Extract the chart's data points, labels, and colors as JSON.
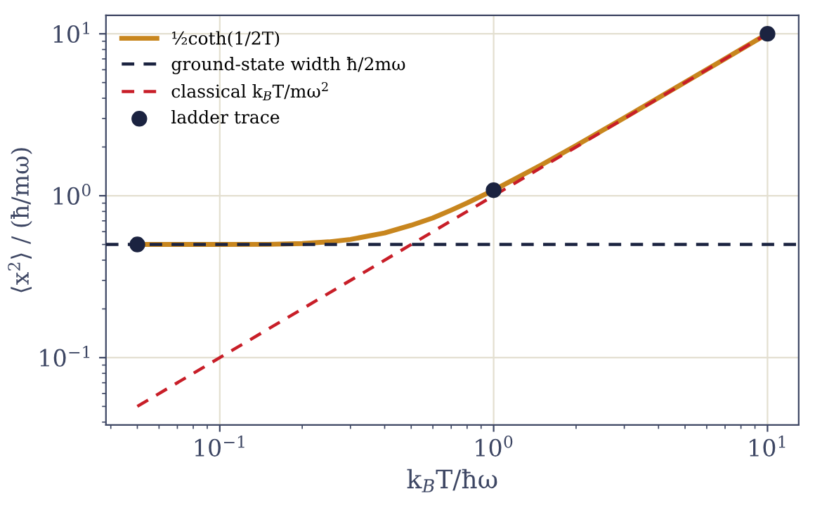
{
  "chart_data": {
    "type": "line",
    "xlabel": "k$_{B}$T/ħω",
    "ylabel": "⟨x$^{2}$⟩ / (ħ/mω)",
    "log": "xy",
    "grid": true,
    "legend": "top left",
    "xlim": [
      0.0384,
      13.0
    ],
    "ylim": [
      0.0384,
      13.0
    ],
    "xticks": [
      {
        "value": 0.1,
        "label": "10$^{−1}$"
      },
      {
        "value": 1,
        "label": "10$^{0}$"
      },
      {
        "value": 10,
        "label": "10$^{1}$"
      }
    ],
    "yticks": [
      {
        "value": 0.1,
        "label": "10$^{−1}$"
      },
      {
        "value": 1,
        "label": "10$^{0}$"
      },
      {
        "value": 10,
        "label": "10$^{1}$"
      }
    ],
    "series": [
      {
        "name": "½coth(1/2T)",
        "color": "#c8861e",
        "line_style": "solid",
        "x": [
          0.05,
          0.1,
          0.15,
          0.2,
          0.25,
          0.3,
          0.4,
          0.5,
          0.6,
          0.7,
          0.8,
          1,
          1.5,
          2,
          3,
          5,
          7,
          10
        ],
        "values": [
          0.5,
          0.5,
          0.501,
          0.507,
          0.519,
          0.537,
          0.589,
          0.657,
          0.729,
          0.815,
          0.902,
          1.082,
          1.555,
          2.042,
          3.028,
          5.017,
          7.012,
          10.008
        ]
      },
      {
        "name": "classical k$_{B}$T/mω$^{2}$",
        "color": "#c81e28",
        "line_style": "dashed",
        "x": [
          0.05,
          10
        ],
        "values": [
          0.05,
          10
        ]
      },
      {
        "name": "ladder trace",
        "type": "scatter",
        "color": "#1b2340",
        "marker": "circle",
        "x": [
          0.05,
          1,
          10
        ],
        "values": [
          0.5,
          1.082,
          10.008
        ]
      }
    ],
    "ref_lines": [
      {
        "axis": "y",
        "value": 0.5,
        "label": "ground-state width ħ/2mω",
        "color": "#1b2340",
        "line_style": "dashed"
      }
    ]
  }
}
